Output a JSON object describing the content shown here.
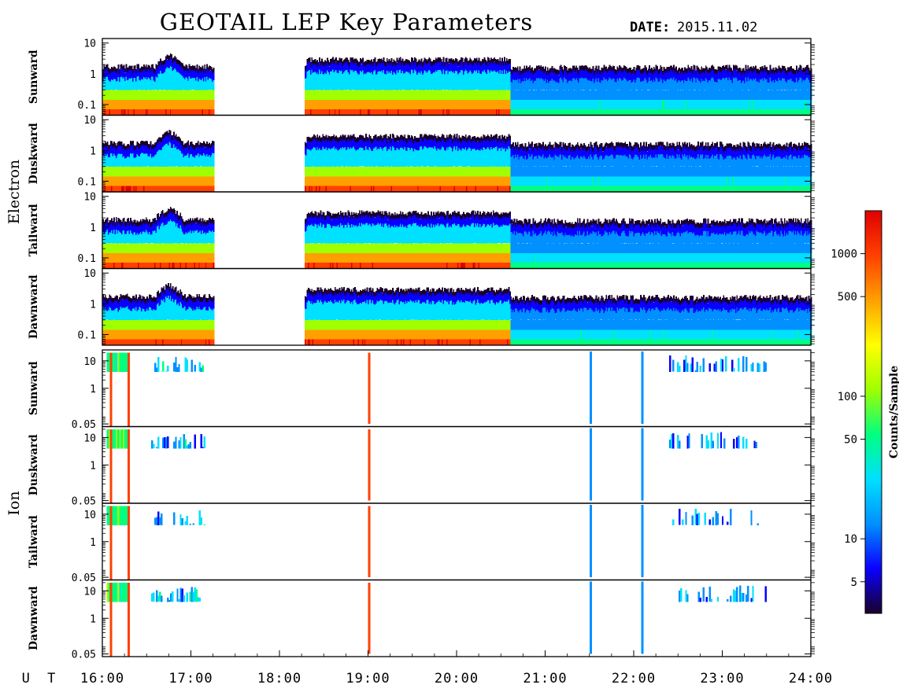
{
  "header": {
    "title": "GEOTAIL LEP Key Parameters",
    "date_label": "DATE:",
    "date_value": "2015.11.02",
    "ut_label": "U T"
  },
  "colorbar": {
    "label": "Counts/Sample",
    "scale": "log",
    "range": [
      3,
      2000
    ],
    "ticks": [
      {
        "value": 1000,
        "label": "1000"
      },
      {
        "value": 500,
        "label": "500"
      },
      {
        "value": 100,
        "label": "100"
      },
      {
        "value": 50,
        "label": "50"
      },
      {
        "value": 10,
        "label": "10"
      },
      {
        "value": 5,
        "label": "5"
      }
    ],
    "colors": [
      "#1a0028",
      "#0a00ff",
      "#0090ff",
      "#00e0ff",
      "#00ff80",
      "#a0ff00",
      "#ffff00",
      "#ffa000",
      "#ff4000",
      "#e00000"
    ]
  },
  "chart_data": {
    "type": "heatmap",
    "x_axis": {
      "label": "U T",
      "range_hours": [
        16,
        24
      ],
      "ticks": [
        "16:00",
        "17:00",
        "18:00",
        "19:00",
        "20:00",
        "21:00",
        "22:00",
        "23:00",
        "24:00"
      ]
    },
    "groups": [
      {
        "name": "Electron",
        "y_scale": "log",
        "y_range": [
          0.045,
          14
        ],
        "y_ticks": [
          {
            "value": 10,
            "label": "10"
          },
          {
            "value": 1,
            "label": "1"
          },
          {
            "value": 0.1,
            "label": "0.1"
          }
        ],
        "panels": [
          {
            "name": "Sunward",
            "key": "e_sun"
          },
          {
            "name": "Duskward",
            "key": "e_dusk"
          },
          {
            "name": "Tailward",
            "key": "e_tail"
          },
          {
            "name": "Dawnward",
            "key": "e_dawn"
          }
        ],
        "data_intervals_ut": [
          [
            "16:00",
            "17:15"
          ],
          [
            "18:17",
            "24:00"
          ]
        ]
      },
      {
        "name": "Ion",
        "y_scale": "log",
        "y_range": [
          0.04,
          25
        ],
        "y_ticks": [
          {
            "value": 10,
            "label": "10"
          },
          {
            "value": 1,
            "label": "1"
          },
          {
            "value": 0.05,
            "label": "0.05"
          }
        ],
        "panels": [
          {
            "name": "Sunward",
            "key": "i_sun"
          },
          {
            "name": "Duskward",
            "key": "i_dusk"
          },
          {
            "name": "Tailward",
            "key": "i_tail"
          },
          {
            "name": "Dawnward",
            "key": "i_dawn"
          }
        ],
        "bursts_ut": [
          "16:05",
          "16:17",
          "19:00",
          "21:30",
          "22:05"
        ]
      }
    ]
  }
}
